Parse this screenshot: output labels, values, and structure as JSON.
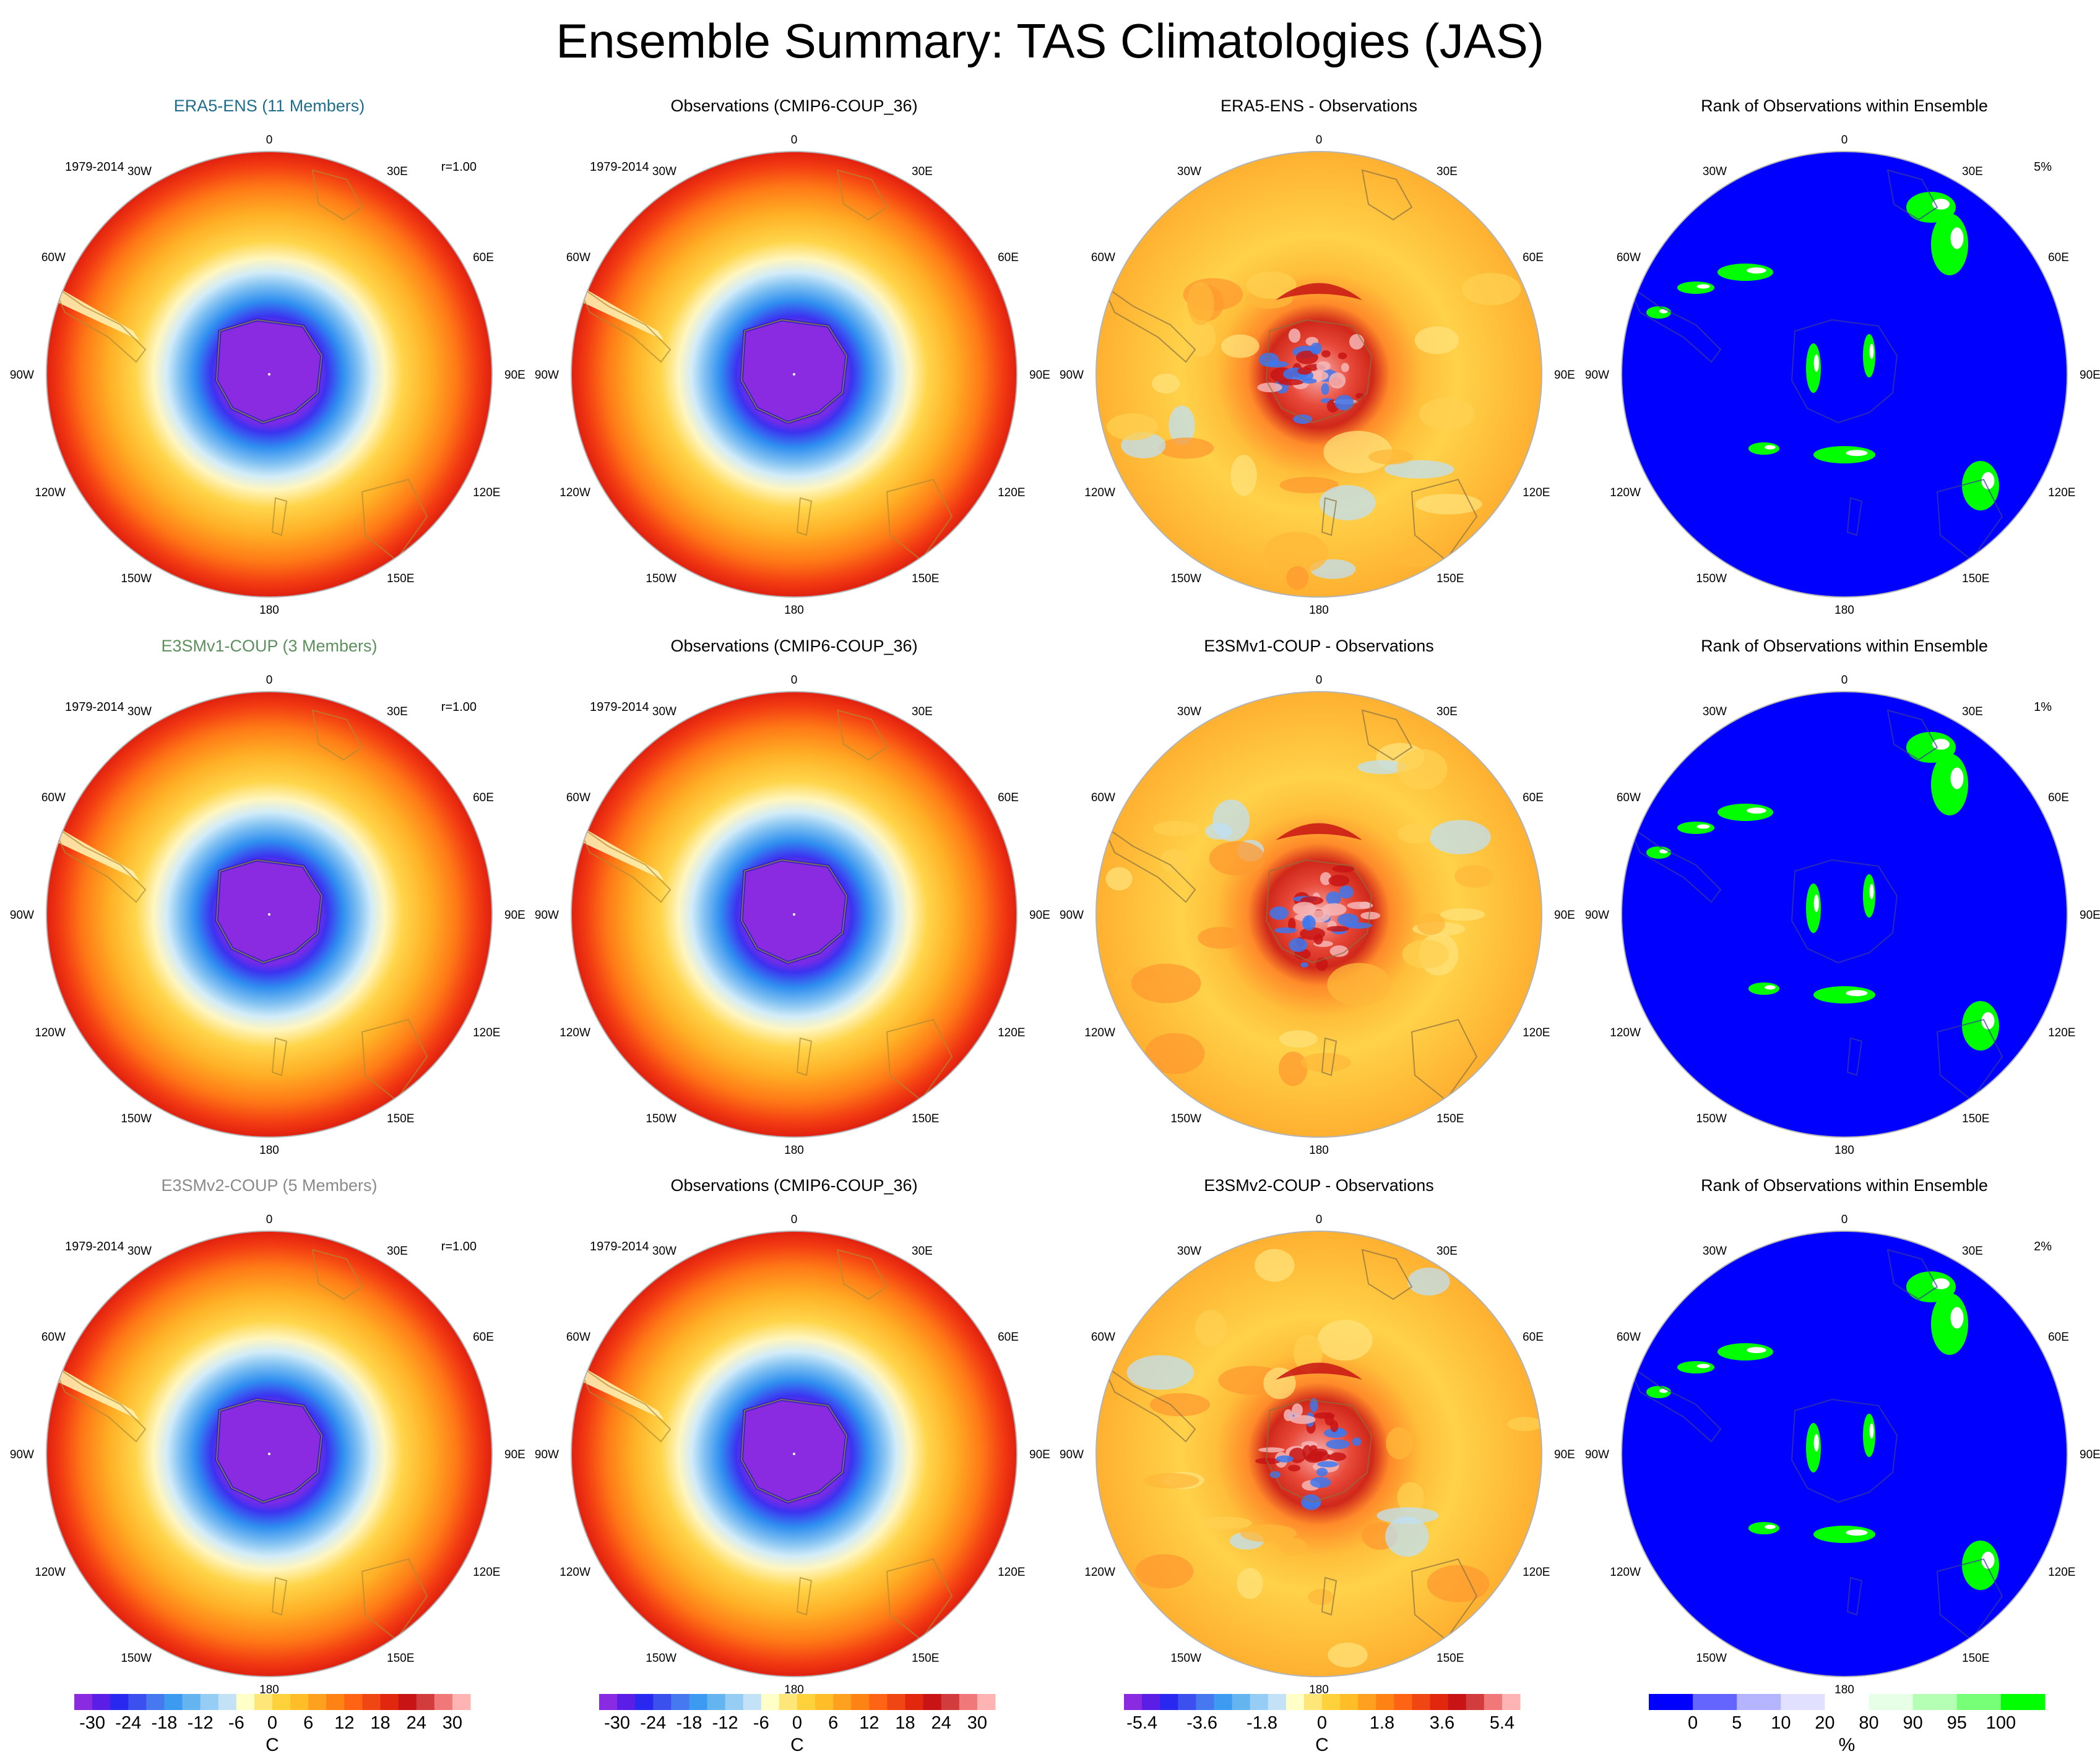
{
  "title": "Ensemble Summary: TAS Climatologies (JAS)",
  "lon_labels": [
    "0",
    "30E",
    "60E",
    "90E",
    "120E",
    "150E",
    "180",
    "150W",
    "120W",
    "90W",
    "60W",
    "30W"
  ],
  "rows": [
    {
      "panels": [
        {
          "type": "clim",
          "title": "ERA5-ENS (11 Members)",
          "title_color": "#1f6e8c",
          "years": "1979-2014",
          "corr": "r=1.00"
        },
        {
          "type": "clim",
          "title": "Observations (CMIP6-COUP_36)",
          "title_color": "#000000",
          "years": "1979-2014"
        },
        {
          "type": "diff",
          "title": "ERA5-ENS - Observations",
          "title_color": "#000000"
        },
        {
          "type": "rank",
          "title": "Rank of Observations within Ensemble",
          "title_color": "#000000",
          "percent": "5%"
        }
      ]
    },
    {
      "panels": [
        {
          "type": "clim",
          "title": "E3SMv1-COUP (3 Members)",
          "title_color": "#5e8f5e",
          "years": "1979-2014",
          "corr": "r=1.00"
        },
        {
          "type": "clim",
          "title": "Observations (CMIP6-COUP_36)",
          "title_color": "#000000",
          "years": "1979-2014"
        },
        {
          "type": "diff",
          "title": "E3SMv1-COUP - Observations",
          "title_color": "#000000"
        },
        {
          "type": "rank",
          "title": "Rank of Observations within Ensemble",
          "title_color": "#000000",
          "percent": "1%"
        }
      ]
    },
    {
      "panels": [
        {
          "type": "clim",
          "title": "E3SMv2-COUP (5 Members)",
          "title_color": "#8a8a8a",
          "years": "1979-2014",
          "corr": "r=1.00"
        },
        {
          "type": "clim",
          "title": "Observations (CMIP6-COUP_36)",
          "title_color": "#000000",
          "years": "1979-2014"
        },
        {
          "type": "diff",
          "title": "E3SMv2-COUP - Observations",
          "title_color": "#000000"
        },
        {
          "type": "rank",
          "title": "Rank of Observations within Ensemble",
          "title_color": "#000000",
          "percent": "2%"
        }
      ]
    }
  ],
  "colorbars": [
    {
      "colors": [
        "#8a2be2",
        "#5a1ee6",
        "#2828f0",
        "#3c50f0",
        "#4678f0",
        "#3c9bf0",
        "#64b4f0",
        "#96cdf5",
        "#c3e1f7",
        "#ffffc8",
        "#ffe678",
        "#ffd23c",
        "#ffbe28",
        "#ffa01e",
        "#ff8214",
        "#ff6414",
        "#f04614",
        "#e1280f",
        "#c81414",
        "#d23c3c",
        "#f07878",
        "#ffb4b4"
      ],
      "ticks": [
        "-30",
        "-24",
        "-18",
        "-12",
        "-6",
        "0",
        "6",
        "12",
        "18",
        "24",
        "30"
      ],
      "unit": "C"
    },
    {
      "colors": [
        "#8a2be2",
        "#5a1ee6",
        "#2828f0",
        "#3c50f0",
        "#4678f0",
        "#3c9bf0",
        "#64b4f0",
        "#96cdf5",
        "#c3e1f7",
        "#ffffc8",
        "#ffe678",
        "#ffd23c",
        "#ffbe28",
        "#ffa01e",
        "#ff8214",
        "#ff6414",
        "#f04614",
        "#e1280f",
        "#c81414",
        "#d23c3c",
        "#f07878",
        "#ffb4b4"
      ],
      "ticks": [
        "-30",
        "-24",
        "-18",
        "-12",
        "-6",
        "0",
        "6",
        "12",
        "18",
        "24",
        "30"
      ],
      "unit": "C"
    },
    {
      "colors": [
        "#8a2be2",
        "#5a1ee6",
        "#2828f0",
        "#3c50f0",
        "#4678f0",
        "#3c9bf0",
        "#64b4f0",
        "#96cdf5",
        "#c3e1f7",
        "#ffffc8",
        "#ffe678",
        "#ffd23c",
        "#ffbe28",
        "#ffa01e",
        "#ff8214",
        "#ff6414",
        "#f04614",
        "#e1280f",
        "#c81414",
        "#d23c3c",
        "#f07878",
        "#ffb4b4"
      ],
      "ticks": [
        "-5.4",
        "-3.6",
        "-1.8",
        "0",
        "1.8",
        "3.6",
        "5.4"
      ],
      "unit": "C"
    },
    {
      "colors": [
        "#0000ff",
        "#6464ff",
        "#b4b4ff",
        "#e1e1ff",
        "#ffffff",
        "#e6ffe6",
        "#b4ffb4",
        "#78ff78",
        "#00ff00"
      ],
      "ticks": [
        "0",
        "5",
        "10",
        "20",
        "80",
        "90",
        "95",
        "100"
      ],
      "unit": "%"
    }
  ]
}
